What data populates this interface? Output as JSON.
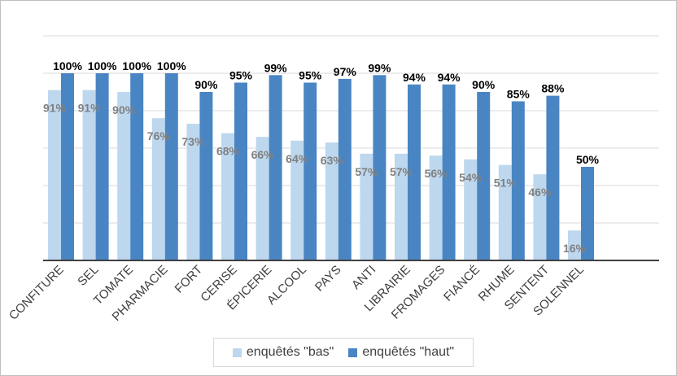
{
  "chart_data": {
    "type": "bar",
    "categories": [
      "CONFITURE",
      "SEL",
      "TOMATE",
      "PHARMACIE",
      "FORT",
      "CERISE",
      "ÉPICERIE",
      "ALCOOL",
      "PAYS",
      "ANTI",
      "LIBRAIRIE",
      "FROMAGES",
      "FIANCÉ",
      "RHUME",
      "SENTENT",
      "SOLENNEL"
    ],
    "series": [
      {
        "name": "enquêtés \"bas\"",
        "color": "#bdd7ee",
        "label_color": "#808080",
        "values": [
          91,
          91,
          90,
          76,
          73,
          68,
          66,
          64,
          63,
          57,
          57,
          56,
          54,
          51,
          46,
          16
        ],
        "labels": [
          "91%",
          "91%",
          "90%",
          "76%",
          "73%",
          "68%",
          "66%",
          "64%",
          "63%",
          "57%",
          "57%",
          "56%",
          "54%",
          "51%",
          "46%",
          "16%"
        ]
      },
      {
        "name": "enquêtés \"haut\"",
        "color": "#4a85c3",
        "label_color": "#000000",
        "values": [
          100,
          100,
          100,
          100,
          90,
          95,
          99,
          95,
          97,
          99,
          94,
          94,
          90,
          85,
          88,
          50
        ],
        "labels": [
          "100%",
          "100%",
          "100%",
          "100%",
          "90%",
          "95%",
          "99%",
          "95%",
          "97%",
          "99%",
          "94%",
          "94%",
          "90%",
          "85%",
          "88%",
          "50%"
        ]
      }
    ],
    "ylim": [
      0,
      120
    ],
    "gridlines": true,
    "legend_position": "bottom"
  }
}
